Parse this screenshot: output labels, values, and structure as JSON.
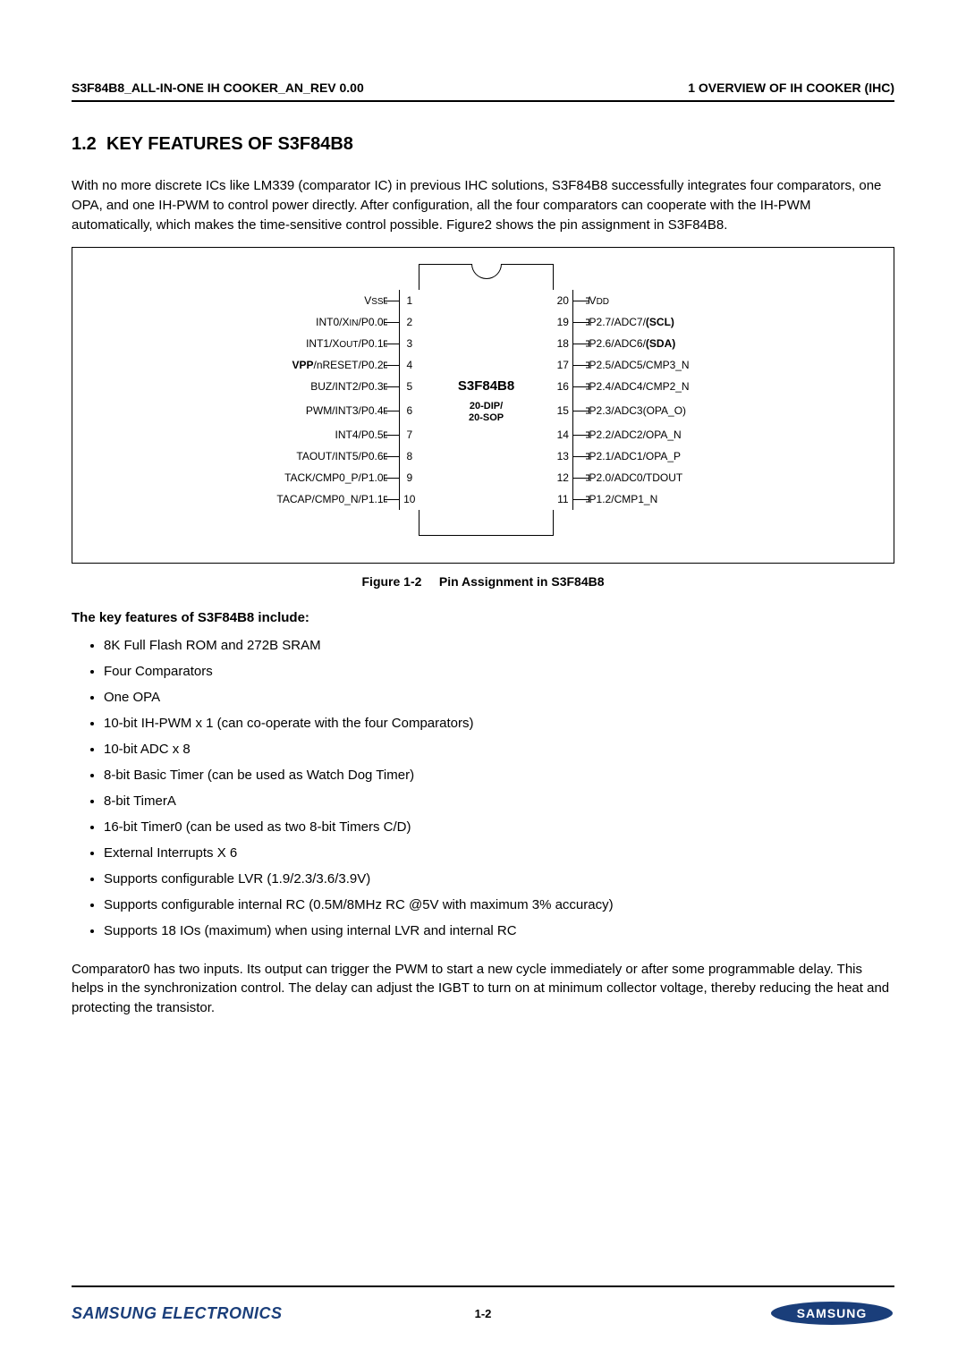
{
  "header": {
    "left": "S3F84B8_ALL-IN-ONE IH COOKER_AN_REV 0.00",
    "right": "1 OVERVIEW OF IH COOKER (IHC)"
  },
  "section": {
    "number": "1.2",
    "title": "KEY FEATURES OF S3F84B8"
  },
  "intro_text": "With no more discrete ICs like LM339 (comparator IC) in previous IHC solutions, S3F84B8 successfully integrates four comparators, one OPA, and one IH-PWM to control power directly. After configuration, all the four comparators can cooperate with the IH-PWM automatically, which makes the time-sensitive control possible. Figure2 shows the pin assignment in S3F84B8.",
  "chip": {
    "name": "S3F84B8",
    "package_line1": "20-DIP/",
    "package_line2": "20-SOP",
    "left_pins": [
      {
        "num": "1",
        "label_pre": "V",
        "label_small": "SS",
        "label_post": ""
      },
      {
        "num": "2",
        "label_pre": "INT0/X",
        "label_small": "IN",
        "label_post": "/P0.0"
      },
      {
        "num": "3",
        "label_pre": "INT1/X",
        "label_small": "OUT",
        "label_post": "/P0.1"
      },
      {
        "num": "4",
        "label_pre": "",
        "bold_pre": "VPP",
        "label_post": "/nRESET/P0.2"
      },
      {
        "num": "5",
        "label_pre": "BUZ/INT2/P0.3",
        "label_small": "",
        "label_post": ""
      },
      {
        "num": "6",
        "label_pre": "PWM/INT3/P0.4",
        "label_small": "",
        "label_post": ""
      },
      {
        "num": "7",
        "label_pre": "INT4/P0.5",
        "label_small": "",
        "label_post": ""
      },
      {
        "num": "8",
        "label_pre": "TAOUT/INT5/P0.6",
        "label_small": "",
        "label_post": ""
      },
      {
        "num": "9",
        "label_pre": "TACK/CMP0_P/P1.0",
        "label_small": "",
        "label_post": ""
      },
      {
        "num": "10",
        "label_pre": "TACAP/CMP0_N/P1.1",
        "label_small": "",
        "label_post": ""
      }
    ],
    "right_pins": [
      {
        "num": "20",
        "label_pre": "V",
        "label_small": "DD",
        "label_post": ""
      },
      {
        "num": "19",
        "label_pre": "P2.7/ADC7/",
        "bold_post": "(SCL)"
      },
      {
        "num": "18",
        "label_pre": "P2.6/ADC6/",
        "bold_post": "(SDA)"
      },
      {
        "num": "17",
        "label_pre": "P2.5/ADC5/CMP3_N"
      },
      {
        "num": "16",
        "label_pre": "P2.4/ADC4/CMP2_N"
      },
      {
        "num": "15",
        "label_pre": "P2.3/ADC3(OPA_O)"
      },
      {
        "num": "14",
        "label_pre": "P2.2/ADC2/OPA_N"
      },
      {
        "num": "13",
        "label_pre": "P2.1/ADC1/OPA_P"
      },
      {
        "num": "12",
        "label_pre": "P2.0/ADC0/TDOUT"
      },
      {
        "num": "11",
        "label_pre": "P1.2/CMP1_N"
      }
    ]
  },
  "figure_caption_label": "Figure 1-2",
  "figure_caption_text": "Pin Assignment in S3F84B8",
  "features_heading": "The key features of S3F84B8 include:",
  "features": [
    "8K Full Flash ROM and 272B SRAM",
    "Four Comparators",
    "One OPA",
    "10-bit IH-PWM x 1 (can co-operate with the four Comparators)",
    "10-bit ADC x 8",
    "8-bit Basic Timer (can be used as Watch Dog Timer)",
    "8-bit TimerA",
    "16-bit Timer0 (can be used as two 8-bit Timers C/D)",
    "External Interrupts X 6",
    "Supports configurable LVR (1.9/2.3/3.6/3.9V)",
    "Supports configurable internal RC (0.5M/8MHz RC @5V with maximum 3% accuracy)",
    "Supports 18 IOs (maximum) when using internal LVR and internal RC"
  ],
  "trailing_para": "Comparator0 has two inputs. Its output can trigger the PWM to start a new cycle immediately or after some programmable delay. This helps in the synchronization control. The delay can adjust the IGBT to turn on at minimum collector voltage, thereby reducing the heat and protecting the transistor.",
  "footer": {
    "company": "SAMSUNG ELECTRONICS",
    "page": "1-2",
    "logo_color": "#1a3e7a"
  }
}
